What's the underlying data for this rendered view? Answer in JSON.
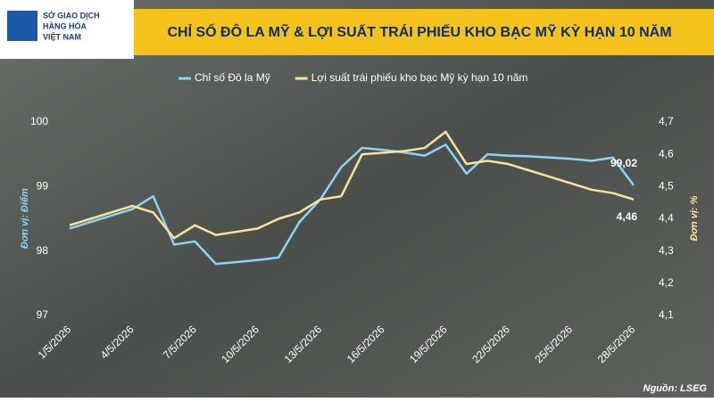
{
  "logo": [
    "SỞ GIAO DỊCH",
    "HÀNG HÓA",
    "VIỆT NAM"
  ],
  "source": "Nguồn: LSEG",
  "chart_data": {
    "type": "line",
    "title": "CHỈ SỐ ĐÔ LA MỸ & LỢI SUẤT TRÁI PHIẾU KHO BẠC MỸ KỲ HẠN 10 NĂM",
    "y_label": "Đơn vị: Điểm",
    "y2_label": "Đơn vị: %",
    "categories": [
      "1/5/2026",
      null,
      null,
      "4/5/2026",
      null,
      null,
      "7/5/2026",
      null,
      null,
      "10/5/2026",
      null,
      null,
      "13/5/2026",
      null,
      null,
      "16/5/2026",
      null,
      null,
      "19/5/2026",
      null,
      null,
      "22/5/2026",
      null,
      null,
      "25/5/2026",
      null,
      null,
      "28/5/2026"
    ],
    "ylim": [
      97,
      100
    ],
    "yticks": [
      97,
      98,
      99,
      100
    ],
    "y2lim": [
      4.1,
      4.7
    ],
    "y2ticks": [
      {
        "value": 4.1,
        "label": "4,1"
      },
      {
        "value": 4.2,
        "label": "4,2"
      },
      {
        "value": 4.3,
        "label": "4,3"
      },
      {
        "value": 4.4,
        "label": "4,4"
      },
      {
        "value": 4.5,
        "label": "4,5"
      },
      {
        "value": 4.6,
        "label": "4,6"
      },
      {
        "value": 4.7,
        "label": "4,7"
      }
    ],
    "legend": "top",
    "series": [
      {
        "name": "Chỉ số Đô la Mỹ",
        "color": "#8fd3f4",
        "values": [
          98.35,
          98.45,
          98.55,
          98.65,
          98.85,
          98.1,
          98.15,
          97.8,
          97.83,
          97.86,
          97.9,
          98.45,
          98.8,
          99.3,
          99.6,
          99.57,
          99.53,
          99.48,
          99.65,
          99.2,
          99.5,
          99.48,
          99.47,
          99.45,
          99.43,
          99.4,
          99.45,
          99.02
        ],
        "value_labels": [
          null,
          null,
          null,
          null,
          null,
          null,
          null,
          null,
          null,
          null,
          null,
          null,
          null,
          null,
          null,
          null,
          null,
          null,
          null,
          null,
          null,
          null,
          null,
          null,
          null,
          null,
          null,
          "99,02"
        ]
      },
      {
        "name": "Lợi suất trái phiếu kho bạc Mỹ kỳ hạn 10 năm",
        "color": "#f7e39a",
        "axis": "y2",
        "values": [
          4.38,
          4.4,
          4.42,
          4.44,
          4.42,
          4.34,
          4.38,
          4.35,
          4.36,
          4.37,
          4.4,
          4.42,
          4.46,
          4.47,
          4.6,
          4.605,
          4.61,
          4.62,
          4.67,
          4.57,
          4.58,
          4.57,
          4.55,
          4.53,
          4.51,
          4.49,
          4.48,
          4.46
        ],
        "value_labels": [
          null,
          null,
          null,
          null,
          null,
          null,
          null,
          null,
          null,
          null,
          null,
          null,
          null,
          null,
          null,
          null,
          null,
          null,
          null,
          null,
          null,
          null,
          null,
          null,
          null,
          null,
          null,
          "4,46"
        ]
      }
    ]
  }
}
